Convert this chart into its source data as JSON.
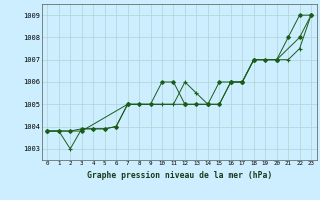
{
  "title": "Graphe pression niveau de la mer (hPa)",
  "bg_color": "#cceeff",
  "grid_color": "#b0d4d4",
  "line_color": "#1a5c1a",
  "x_labels": [
    "0",
    "1",
    "2",
    "3",
    "4",
    "5",
    "6",
    "7",
    "8",
    "9",
    "10",
    "11",
    "12",
    "13",
    "14",
    "15",
    "16",
    "17",
    "18",
    "19",
    "20",
    "21",
    "22",
    "23"
  ],
  "ylim": [
    1002.5,
    1009.5
  ],
  "yticks": [
    1003,
    1004,
    1005,
    1006,
    1007,
    1008,
    1009
  ],
  "series1": [
    1003.8,
    1003.8,
    1003.8,
    1003.9,
    1003.9,
    1003.9,
    1004.0,
    1005.0,
    1005.0,
    1005.0,
    1006.0,
    1006.0,
    1005.0,
    1005.0,
    1005.0,
    1006.0,
    1006.0,
    1006.0,
    1007.0,
    1007.0,
    1007.0,
    1008.0,
    1009.0,
    1009.0
  ],
  "series2": [
    1003.8,
    1003.8,
    1003.0,
    1003.9,
    1003.9,
    1003.9,
    1004.0,
    1005.0,
    1005.0,
    1005.0,
    1005.0,
    1005.0,
    1006.0,
    1005.5,
    1005.0,
    1005.0,
    1006.0,
    1006.0,
    1007.0,
    1007.0,
    1007.0,
    1007.0,
    1007.5,
    1009.0
  ],
  "series3": [
    1003.8,
    null,
    null,
    1003.8,
    null,
    null,
    null,
    1005.0,
    null,
    null,
    null,
    null,
    1005.0,
    null,
    1005.0,
    1005.0,
    1006.0,
    1006.0,
    1007.0,
    null,
    1007.0,
    null,
    1008.0,
    1009.0
  ]
}
